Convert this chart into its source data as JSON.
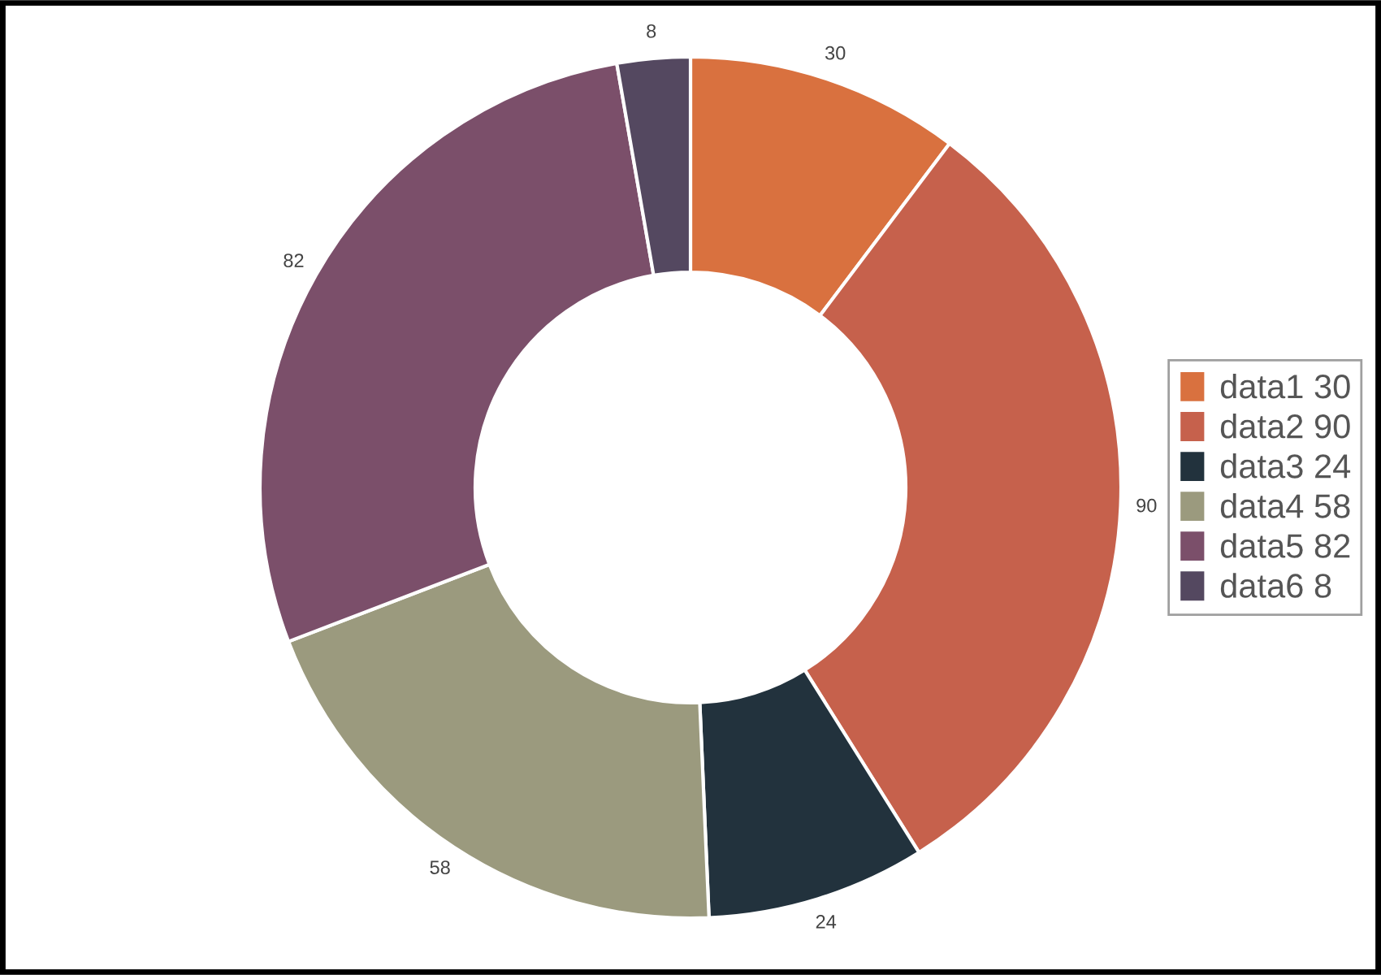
{
  "chart_data": {
    "type": "donut",
    "categories": [
      "data1 30",
      "data2 90",
      "data3 24",
      "data4 58",
      "data5 82",
      "data6 8"
    ],
    "values": [
      30,
      90,
      24,
      58,
      82,
      8
    ],
    "colors": [
      "#d9713f",
      "#c6614c",
      "#22323d",
      "#9b9a7e",
      "#7b4f6a",
      "#544860"
    ],
    "data_labels": true,
    "legend": "right"
  }
}
